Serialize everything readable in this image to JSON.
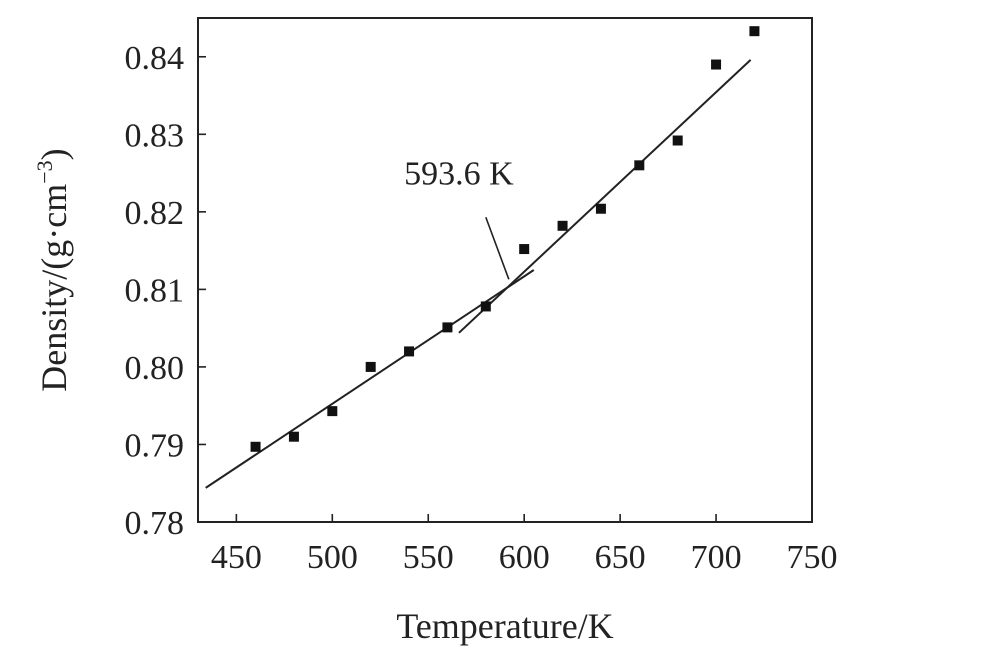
{
  "chart_data": {
    "type": "scatter",
    "xlabel": "Temperature/K",
    "ylabel_main": "Density/(g·cm",
    "ylabel_sup": "−3",
    "ylabel_close": ")",
    "xlim": [
      430,
      750
    ],
    "ylim": [
      0.78,
      0.845
    ],
    "xticks": [
      450,
      500,
      550,
      600,
      650,
      700,
      750
    ],
    "yticks": [
      0.78,
      0.79,
      0.8,
      0.81,
      0.82,
      0.83,
      0.84
    ],
    "ytick_labels": [
      "0.78",
      "0.79",
      "0.80",
      "0.81",
      "0.82",
      "0.83",
      "0.84"
    ],
    "grid": false,
    "points": [
      {
        "x": 460,
        "y": 0.7897
      },
      {
        "x": 480,
        "y": 0.791
      },
      {
        "x": 500,
        "y": 0.7943
      },
      {
        "x": 520,
        "y": 0.8
      },
      {
        "x": 540,
        "y": 0.802
      },
      {
        "x": 560,
        "y": 0.8051
      },
      {
        "x": 580,
        "y": 0.8078
      },
      {
        "x": 600,
        "y": 0.8152
      },
      {
        "x": 620,
        "y": 0.8182
      },
      {
        "x": 640,
        "y": 0.8204
      },
      {
        "x": 660,
        "y": 0.826
      },
      {
        "x": 680,
        "y": 0.8292
      },
      {
        "x": 700,
        "y": 0.839
      },
      {
        "x": 720,
        "y": 0.8433
      }
    ],
    "fit_lines": [
      {
        "x": [
          434,
          605
        ],
        "y": [
          0.7844,
          0.8125
        ]
      },
      {
        "x": [
          566,
          718
        ],
        "y": [
          0.8044,
          0.8396
        ]
      }
    ],
    "annotation": {
      "text": "593.6 K",
      "label_at": {
        "x": 566,
        "y": 0.8235
      },
      "line_from": {
        "x": 580,
        "y": 0.8193
      },
      "line_to": {
        "x": 592,
        "y": 0.8113
      }
    }
  }
}
